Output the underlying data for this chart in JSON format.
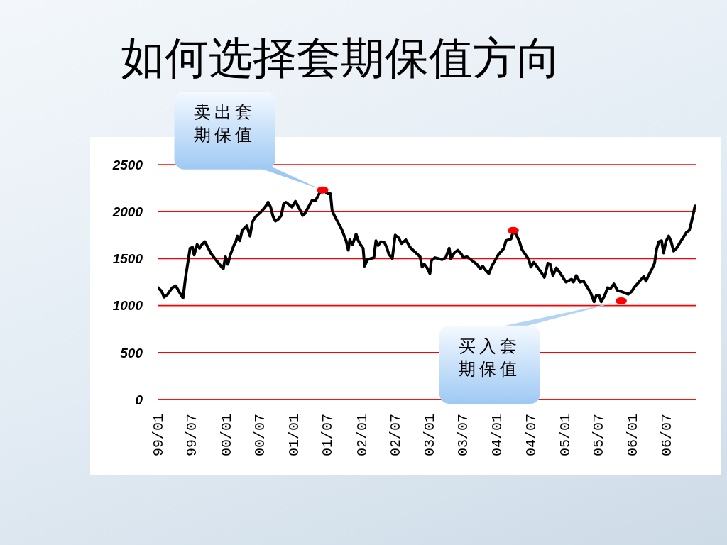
{
  "chart_data": {
    "type": "line",
    "title": "如何选择套期保值方向",
    "xlim": [
      "1999-01-01",
      "2006-12-15"
    ],
    "xticks": [
      {
        "value": "1999-01",
        "label": "99/01"
      },
      {
        "value": "1999-07",
        "label": "99/07"
      },
      {
        "value": "2000-01",
        "label": "00/01"
      },
      {
        "value": "2000-07",
        "label": "00/07"
      },
      {
        "value": "2001-01",
        "label": "01/01"
      },
      {
        "value": "2001-07",
        "label": "01/07"
      },
      {
        "value": "2002-01",
        "label": "02/01"
      },
      {
        "value": "2002-07",
        "label": "02/07"
      },
      {
        "value": "2003-01",
        "label": "03/01"
      },
      {
        "value": "2003-07",
        "label": "03/07"
      },
      {
        "value": "2004-01",
        "label": "04/01"
      },
      {
        "value": "2004-07",
        "label": "04/07"
      },
      {
        "value": "2005-01",
        "label": "05/01"
      },
      {
        "value": "2005-07",
        "label": "05/07"
      },
      {
        "value": "2006-01",
        "label": "06/01"
      },
      {
        "value": "2006-07",
        "label": "06/07"
      }
    ],
    "ylim": [
      0,
      2500
    ],
    "yticks": [
      0,
      500,
      1000,
      1500,
      2000,
      2500
    ],
    "grid": "y",
    "series": [
      {
        "color": "#000000",
        "x": [
          "1999-01-04",
          "1999-01-23",
          "1999-02-05",
          "1999-02-24",
          "1999-03-21",
          "1999-04-09",
          "1999-04-29",
          "1999-05-18",
          "1999-05-31",
          "1999-06-25",
          "1999-07-08",
          "1999-07-17",
          "1999-08-02",
          "1999-08-15",
          "1999-08-28",
          "1999-09-13",
          "1999-09-29",
          "1999-10-14",
          "1999-11-06",
          "1999-12-21",
          "2000-01-02",
          "2000-01-15",
          "2000-01-28",
          "2000-02-16",
          "2000-02-27",
          "2000-03-06",
          "2000-03-19",
          "2000-04-01",
          "2000-04-26",
          "2000-05-13",
          "2000-05-26",
          "2000-06-10",
          "2000-07-12",
          "2000-07-31",
          "2000-08-19",
          "2000-09-01",
          "2000-09-14",
          "2000-09-27",
          "2000-10-13",
          "2000-10-29",
          "2000-11-10",
          "2000-11-23",
          "2000-12-25",
          "2001-01-13",
          "2001-02-01",
          "2001-02-21",
          "2001-03-05",
          "2001-03-24",
          "2001-04-13",
          "2001-05-02",
          "2001-05-21",
          "2001-06-09",
          "2001-07-05",
          "2001-07-21",
          "2001-07-30",
          "2001-08-13",
          "2001-09-20",
          "2001-10-13",
          "2001-10-25",
          "2001-11-02",
          "2001-11-17",
          "2001-12-06",
          "2001-12-18",
          "2001-12-29",
          "2002-01-13",
          "2002-01-21",
          "2002-02-05",
          "2002-03-12",
          "2002-03-23",
          "2002-04-04",
          "2002-04-19",
          "2002-05-08",
          "2002-05-20",
          "2002-05-31",
          "2002-06-19",
          "2002-07-05",
          "2002-07-24",
          "2002-08-08",
          "2002-08-31",
          "2002-09-23",
          "2002-11-16",
          "2002-11-27",
          "2002-12-09",
          "2002-12-24",
          "2003-01-08",
          "2003-01-16",
          "2003-02-04",
          "2003-03-15",
          "2003-04-03",
          "2003-04-22",
          "2003-04-30",
          "2003-05-19",
          "2003-06-07",
          "2003-06-26",
          "2003-07-08",
          "2003-07-27",
          "2003-09-18",
          "2003-10-07",
          "2003-10-19",
          "2003-11-03",
          "2003-11-22",
          "2003-12-08",
          "2004-01-11",
          "2004-02-11",
          "2004-02-22",
          "2004-03-20",
          "2004-04-01",
          "2004-04-16",
          "2004-05-05",
          "2004-05-17",
          "2004-06-24",
          "2004-07-05",
          "2004-07-21",
          "2004-08-09",
          "2004-08-28",
          "2004-09-16",
          "2004-10-05",
          "2004-10-17",
          "2004-11-01",
          "2004-11-20",
          "2004-12-05",
          "2004-12-25",
          "2005-01-10",
          "2005-02-09",
          "2005-02-20",
          "2005-03-07",
          "2005-03-27",
          "2005-04-15",
          "2005-05-04",
          "2005-05-23",
          "2005-06-11",
          "2005-06-23",
          "2005-07-08",
          "2005-07-20",
          "2005-08-08",
          "2005-08-23",
          "2005-09-07",
          "2005-09-26",
          "2005-10-16",
          "2005-11-04",
          "2005-12-12",
          "2005-12-31",
          "2006-01-12",
          "2006-03-06",
          "2006-03-18",
          "2006-03-29",
          "2006-04-17",
          "2006-05-03",
          "2006-05-14",
          "2006-05-26",
          "2006-06-10",
          "2006-06-21",
          "2006-07-03",
          "2006-07-18",
          "2006-07-30",
          "2006-08-14",
          "2006-08-29",
          "2006-10-22",
          "2006-11-06",
          "2006-11-18",
          "2006-12-07"
        ],
        "values": [
          1190,
          1150,
          1090,
          1120,
          1190,
          1210,
          1140,
          1080,
          1290,
          1610,
          1620,
          1540,
          1650,
          1610,
          1650,
          1680,
          1620,
          1560,
          1500,
          1390,
          1520,
          1440,
          1540,
          1640,
          1680,
          1740,
          1690,
          1800,
          1850,
          1740,
          1890,
          1940,
          2000,
          2040,
          2100,
          2050,
          1950,
          1900,
          1920,
          1960,
          2080,
          2100,
          2050,
          2110,
          2040,
          1960,
          1980,
          2050,
          2120,
          2120,
          2190,
          2240,
          2190,
          2190,
          2010,
          1950,
          1810,
          1690,
          1590,
          1700,
          1650,
          1760,
          1690,
          1650,
          1610,
          1420,
          1490,
          1510,
          1690,
          1640,
          1680,
          1670,
          1620,
          1550,
          1500,
          1750,
          1720,
          1660,
          1700,
          1620,
          1520,
          1410,
          1440,
          1400,
          1340,
          1480,
          1510,
          1490,
          1510,
          1610,
          1500,
          1560,
          1590,
          1550,
          1510,
          1520,
          1440,
          1390,
          1420,
          1380,
          1340,
          1420,
          1540,
          1610,
          1690,
          1710,
          1790,
          1760,
          1680,
          1600,
          1490,
          1410,
          1460,
          1410,
          1360,
          1300,
          1450,
          1440,
          1320,
          1400,
          1360,
          1300,
          1250,
          1280,
          1250,
          1320,
          1250,
          1260,
          1200,
          1140,
          1040,
          1110,
          1110,
          1040,
          1110,
          1190,
          1180,
          1230,
          1160,
          1150,
          1120,
          1150,
          1190,
          1310,
          1260,
          1310,
          1380,
          1450,
          1600,
          1680,
          1690,
          1560,
          1680,
          1740,
          1690,
          1580,
          1610,
          1780,
          1800,
          1890,
          2060
        ]
      },
      {
        "type": "scatter",
        "color": "#ff0000",
        "marker": "circle",
        "x": [
          "2001-06-09",
          "2004-04-01",
          "2005-11-04"
        ],
        "values": [
          2230,
          1800,
          1050
        ]
      }
    ],
    "annotations": [
      {
        "text": "卖出套期保值",
        "x": "2001-06-09",
        "y": 2230
      },
      {
        "text": "买入套期保值",
        "x": "2005-11-04",
        "y": 1050
      }
    ]
  }
}
